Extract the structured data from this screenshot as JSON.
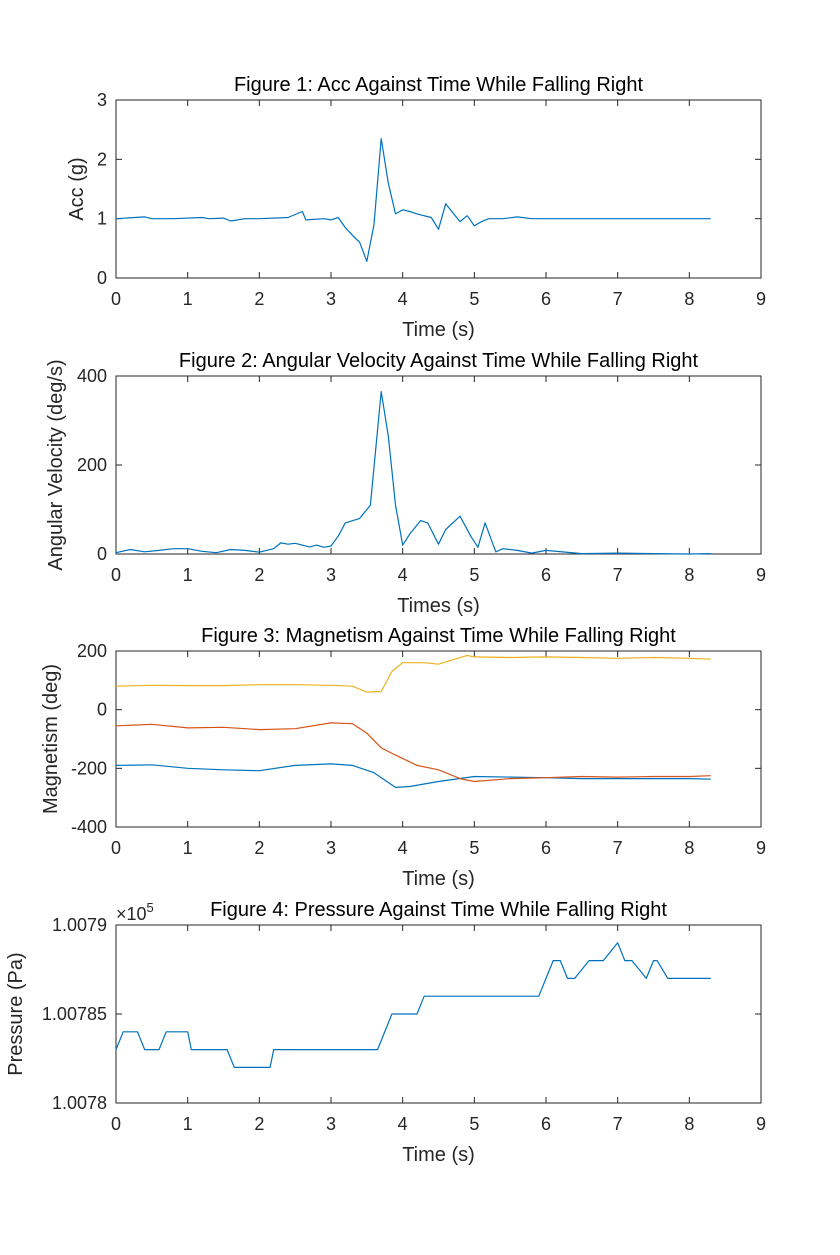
{
  "colors": {
    "blue": "#0072BD",
    "orange": "#D95319",
    "yellow": "#EDB120",
    "axis": "#262626"
  },
  "chart_data": [
    {
      "type": "line",
      "title": "Figure 1: Acc Against Time While Falling Right",
      "xlabel": "Time (s)",
      "ylabel": "Acc (g)",
      "xlim": [
        0,
        9
      ],
      "ylim": [
        0,
        3
      ],
      "xticks": [
        "0",
        "1",
        "2",
        "3",
        "4",
        "5",
        "6",
        "7",
        "8",
        "9"
      ],
      "yticks": [
        "0",
        "1",
        "2",
        "3"
      ],
      "exponent": "",
      "series": [
        {
          "color": "#0072BD",
          "x": [
            0,
            0.4,
            0.5,
            0.8,
            1.2,
            1.3,
            1.5,
            1.6,
            1.8,
            2.0,
            2.4,
            2.6,
            2.65,
            2.9,
            3.0,
            3.1,
            3.2,
            3.3,
            3.4,
            3.5,
            3.6,
            3.7,
            3.8,
            3.9,
            4.0,
            4.1,
            4.2,
            4.4,
            4.5,
            4.6,
            4.7,
            4.8,
            4.9,
            5.0,
            5.1,
            5.2,
            5.4,
            5.6,
            5.8,
            6.0,
            6.5,
            7.0,
            7.5,
            8.0,
            8.3
          ],
          "y": [
            1.0,
            1.03,
            1.0,
            1.0,
            1.02,
            1.0,
            1.01,
            0.96,
            1.0,
            1.0,
            1.02,
            1.12,
            0.98,
            1.0,
            0.98,
            1.02,
            0.85,
            0.72,
            0.6,
            0.28,
            0.9,
            2.35,
            1.6,
            1.08,
            1.15,
            1.12,
            1.08,
            1.02,
            0.82,
            1.25,
            1.1,
            0.95,
            1.05,
            0.88,
            0.95,
            1.0,
            1.0,
            1.03,
            1.0,
            1.0,
            1.0,
            1.0,
            1.0,
            1.0,
            1.0
          ]
        }
      ]
    },
    {
      "type": "line",
      "title": "Figure 2: Angular Velocity Against Time While Falling Right",
      "xlabel": "Times (s)",
      "ylabel": "Angular Velocity (deg/s)",
      "xlim": [
        0,
        9
      ],
      "ylim": [
        0,
        400
      ],
      "xticks": [
        "0",
        "1",
        "2",
        "3",
        "4",
        "5",
        "6",
        "7",
        "8",
        "9"
      ],
      "yticks": [
        "0",
        "200",
        "400"
      ],
      "exponent": "",
      "series": [
        {
          "color": "#0072BD",
          "x": [
            0,
            0.2,
            0.4,
            0.6,
            0.8,
            1.0,
            1.2,
            1.4,
            1.6,
            1.8,
            2.0,
            2.2,
            2.3,
            2.4,
            2.5,
            2.7,
            2.8,
            2.9,
            3.0,
            3.1,
            3.2,
            3.4,
            3.55,
            3.7,
            3.8,
            3.9,
            4.0,
            4.1,
            4.25,
            4.35,
            4.5,
            4.6,
            4.8,
            4.95,
            5.05,
            5.15,
            5.3,
            5.4,
            5.6,
            5.8,
            6.0,
            6.5,
            7.0,
            7.5,
            8.0,
            8.3
          ],
          "y": [
            3,
            10,
            5,
            8,
            12,
            12,
            6,
            3,
            10,
            8,
            4,
            12,
            25,
            22,
            24,
            16,
            20,
            15,
            18,
            40,
            70,
            80,
            110,
            365,
            265,
            110,
            20,
            45,
            75,
            70,
            22,
            55,
            85,
            40,
            15,
            70,
            5,
            12,
            8,
            2,
            8,
            1,
            2,
            1,
            0,
            1
          ]
        }
      ]
    },
    {
      "type": "line",
      "title": "Figure 3: Magnetism Against Time While Falling Right",
      "xlabel": "Time (s)",
      "ylabel": "Magnetism (deg)",
      "xlim": [
        0,
        9
      ],
      "ylim": [
        -400,
        200
      ],
      "xticks": [
        "0",
        "1",
        "2",
        "3",
        "4",
        "5",
        "6",
        "7",
        "8",
        "9"
      ],
      "yticks": [
        "-400",
        "-200",
        "0",
        "200"
      ],
      "exponent": "",
      "series": [
        {
          "color": "#0072BD",
          "x": [
            0,
            0.5,
            1,
            1.5,
            2,
            2.5,
            3,
            3.3,
            3.6,
            3.9,
            4.1,
            4.5,
            5.0,
            5.5,
            6.0,
            6.5,
            7.0,
            7.5,
            8.0,
            8.3
          ],
          "y": [
            -190,
            -188,
            -200,
            -205,
            -208,
            -190,
            -185,
            -190,
            -215,
            -265,
            -262,
            -245,
            -228,
            -230,
            -232,
            -235,
            -235,
            -235,
            -235,
            -237
          ]
        },
        {
          "color": "#D95319",
          "x": [
            0,
            0.5,
            1,
            1.5,
            2,
            2.5,
            3,
            3.3,
            3.5,
            3.7,
            3.9,
            4.2,
            4.5,
            4.8,
            5.0,
            5.5,
            6.0,
            6.5,
            7.0,
            7.5,
            8.0,
            8.3
          ],
          "y": [
            -55,
            -50,
            -62,
            -60,
            -68,
            -65,
            -45,
            -48,
            -80,
            -130,
            -155,
            -190,
            -205,
            -235,
            -245,
            -235,
            -232,
            -228,
            -230,
            -228,
            -228,
            -225
          ]
        },
        {
          "color": "#EDB120",
          "x": [
            0,
            0.5,
            1,
            1.5,
            2,
            2.5,
            3,
            3.3,
            3.5,
            3.7,
            3.85,
            4.0,
            4.3,
            4.5,
            4.7,
            4.9,
            5.0,
            5.5,
            6.0,
            6.5,
            7.0,
            7.5,
            8.0,
            8.3
          ],
          "y": [
            80,
            83,
            82,
            82,
            85,
            85,
            83,
            80,
            60,
            62,
            130,
            160,
            160,
            155,
            170,
            185,
            180,
            178,
            180,
            178,
            175,
            178,
            175,
            172
          ]
        }
      ]
    },
    {
      "type": "line",
      "title": "Figure 4: Pressure Against Time While Falling Right",
      "xlabel": "Time (s)",
      "ylabel": "Pressure (Pa)",
      "xlim": [
        0,
        9
      ],
      "ylim": [
        1.0078,
        1.0079
      ],
      "xticks": [
        "0",
        "1",
        "2",
        "3",
        "4",
        "5",
        "6",
        "7",
        "8",
        "9"
      ],
      "yticks": [
        "1.0078",
        "1.00785",
        "1.0079"
      ],
      "exponent": "×10",
      "exponent_power": "5",
      "series": [
        {
          "color": "#0072BD",
          "x": [
            0,
            0.1,
            0.3,
            0.4,
            0.6,
            0.7,
            0.8,
            1.0,
            1.05,
            1.55,
            1.65,
            2.15,
            2.2,
            3.65,
            3.85,
            4.05,
            4.2,
            4.3,
            5.9,
            6.0,
            6.1,
            6.2,
            6.3,
            6.4,
            6.6,
            6.8,
            7.0,
            7.1,
            7.2,
            7.4,
            7.5,
            7.55,
            7.7,
            8.3
          ],
          "y": [
            1.00783,
            1.00784,
            1.00784,
            1.00783,
            1.00783,
            1.00784,
            1.00784,
            1.00784,
            1.00783,
            1.00783,
            1.00782,
            1.00782,
            1.00783,
            1.00783,
            1.00785,
            1.00785,
            1.00785,
            1.00786,
            1.00786,
            1.00787,
            1.00788,
            1.00788,
            1.00787,
            1.00787,
            1.00788,
            1.00788,
            1.00789,
            1.00788,
            1.00788,
            1.00787,
            1.00788,
            1.00788,
            1.00787,
            1.00787
          ]
        }
      ]
    }
  ]
}
